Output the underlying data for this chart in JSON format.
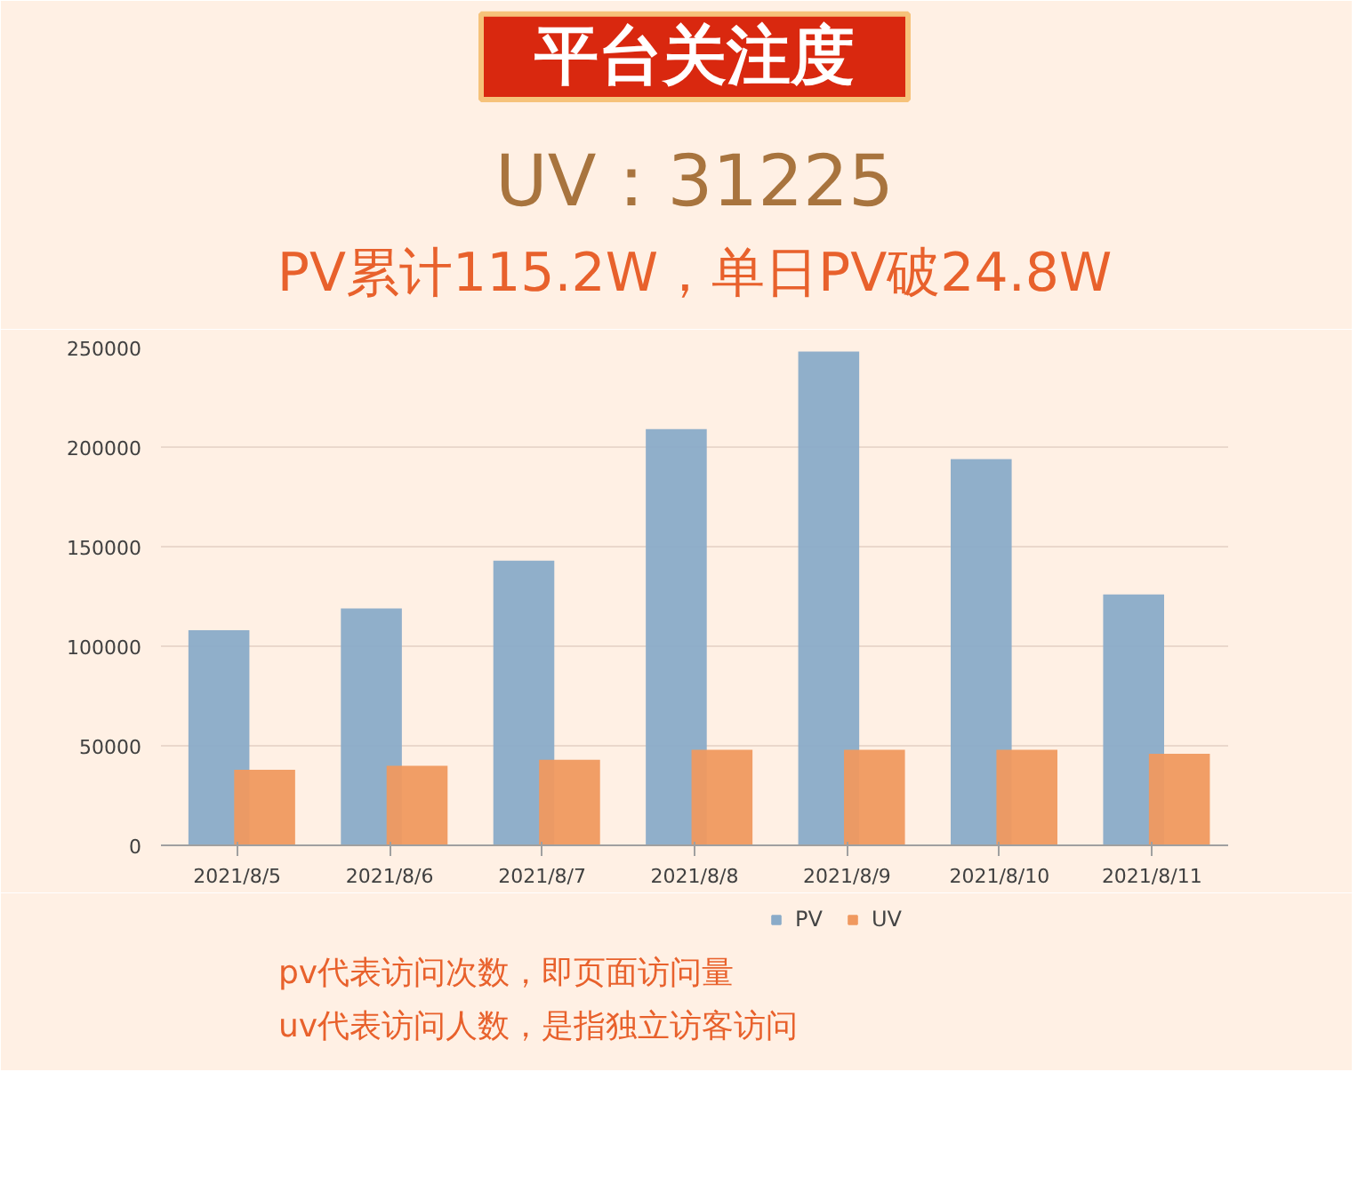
{
  "chart_data": {
    "type": "bar",
    "title": "平台关注度",
    "subtitle": "UV：31225\nPV累计115.2W，单日PV破24.8W",
    "categories": [
      "2021/8/5",
      "2021/8/6",
      "2021/8/7",
      "2021/8/8",
      "2021/8/9",
      "2021/8/10",
      "2021/8/11"
    ],
    "series": [
      {
        "name": "PV",
        "color": "#8aabc8",
        "values": [
          108000,
          119000,
          143000,
          209000,
          248000,
          194000,
          126000
        ]
      },
      {
        "name": "UV",
        "color": "#f0995f",
        "values": [
          38000,
          40000,
          43000,
          48000,
          48000,
          48000,
          46000
        ]
      }
    ],
    "ylim": [
      0,
      250000
    ],
    "yticks": [
      0,
      50000,
      100000,
      150000,
      200000,
      250000
    ],
    "grid": "y",
    "legend": "bottom",
    "annotations": [
      "pv代表访问次数，即页面访问量",
      "uv代表访问人数，是指独立访客访问"
    ]
  }
}
